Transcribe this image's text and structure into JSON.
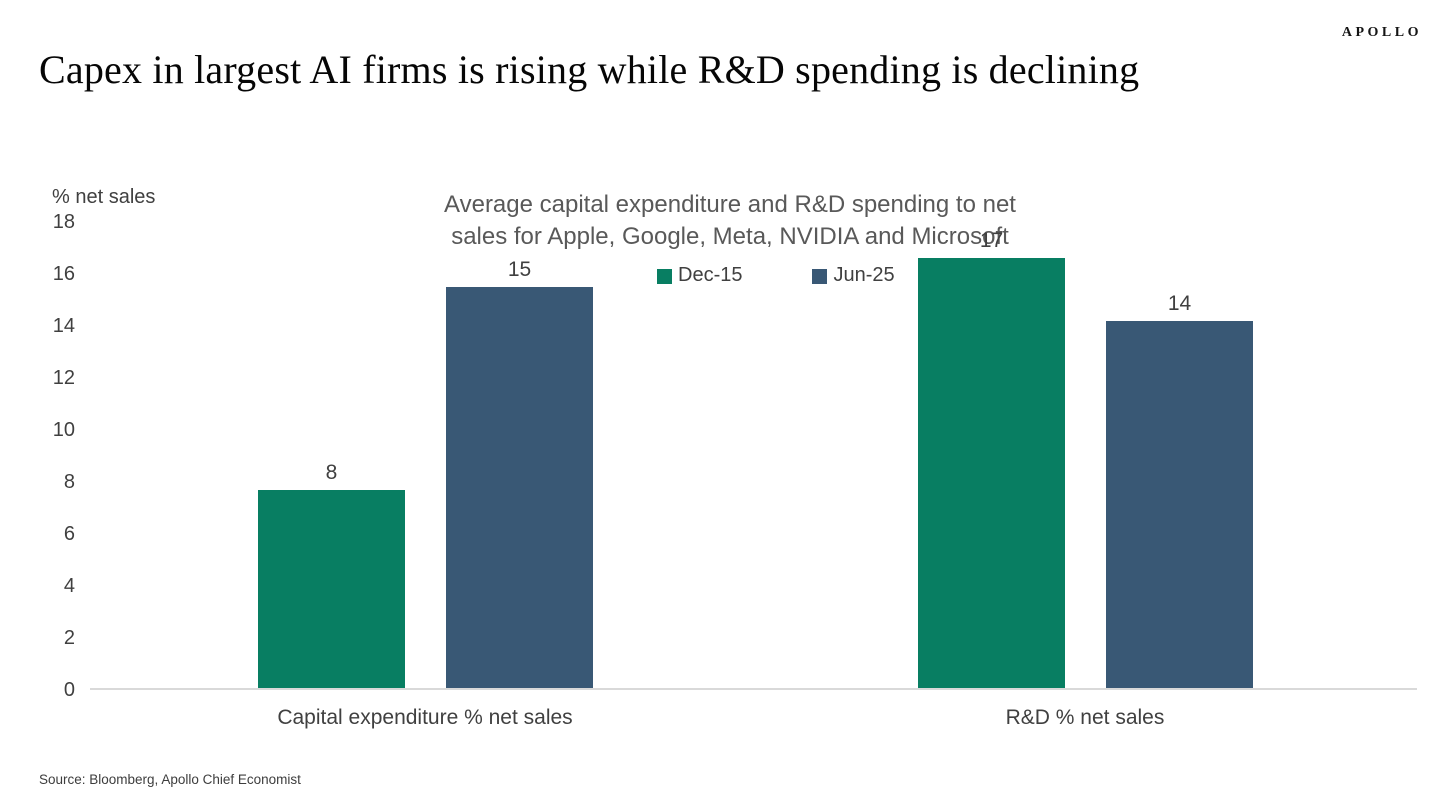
{
  "page": {
    "logo": "APOLLO",
    "title": "Capex in largest AI firms is rising while R&D spending is declining",
    "source": "Source: Bloomberg, Apollo Chief Economist"
  },
  "chart_data": {
    "type": "bar",
    "title": "Average capital expenditure and R&D spending to net sales for Apple, Google, Meta, NVIDIA and Microsoft",
    "title_lines": [
      "Average capital expenditure and R&D spending to net",
      "sales for Apple, Google, Meta, NVIDIA and Microsoft"
    ],
    "ylabel": "% net sales",
    "ylim": [
      0,
      18
    ],
    "yticks": [
      0,
      2,
      4,
      6,
      8,
      10,
      12,
      14,
      16,
      18
    ],
    "grid": false,
    "legend_position": "top-center",
    "categories": [
      "Capital expenditure % net sales",
      "R&D % net sales"
    ],
    "series": [
      {
        "name": "Dec-15",
        "color": "#087e62",
        "values": [
          8,
          17
        ]
      },
      {
        "name": "Jun-25",
        "color": "#395875",
        "values": [
          15,
          14
        ]
      }
    ],
    "bars": [
      {
        "category": "Capital expenditure % net sales",
        "series": "Dec-15",
        "label": "8",
        "plotted": 7.7
      },
      {
        "category": "Capital expenditure % net sales",
        "series": "Jun-25",
        "label": "15",
        "plotted": 15.5
      },
      {
        "category": "R&D % net sales",
        "series": "Dec-15",
        "label": "17",
        "plotted": 16.6
      },
      {
        "category": "R&D % net sales",
        "series": "Jun-25",
        "label": "14",
        "plotted": 14.2
      }
    ]
  }
}
